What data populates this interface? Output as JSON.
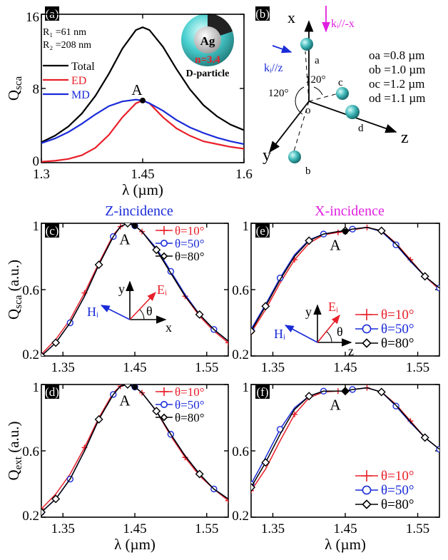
{
  "panel_a": {
    "tag": "(a)",
    "params": [
      "R₁ =61 nm",
      "R₂ =208 nm"
    ],
    "particle_label": "D-particle",
    "particle_core": "Ag",
    "particle_n": "n=3.4",
    "point_label": "A"
  },
  "panel_b": {
    "tag": "(b)",
    "axis_x": "x",
    "axis_y": "y",
    "axis_z": "z",
    "origin": "o",
    "points": [
      "a",
      "b",
      "c",
      "d"
    ],
    "angle_1": "120°",
    "angle_2": "120°",
    "k_minus_x": "kᵢ//-x",
    "k_z": "kᵢ//z",
    "distances": [
      "oa =0.8 µm",
      "ob =1.0 µm",
      "oc =1.2 µm",
      "od =1.1 µm"
    ]
  },
  "titles": {
    "z_incidence": "Z-incidence",
    "x_incidence": "X-incidence"
  },
  "inset_c": {
    "y": "y",
    "axis": "x",
    "E": "Eᵢ",
    "H": "Hᵢ",
    "theta": "θ"
  },
  "inset_e": {
    "y": "y",
    "axis": "z",
    "E": "Eᵢ",
    "H": "Hᵢ",
    "theta": "θ"
  },
  "colors": {
    "total": "#000000",
    "ed": "#e8202a",
    "md": "#1a2bd8",
    "theta10": "#e8202a",
    "theta50": "#1a2bd8",
    "theta80": "#000000",
    "title_z": "#1a2bd8",
    "title_x": "#e020e0",
    "sphere": "#40b8b8",
    "pink_arrow": "#e020e0"
  },
  "chart_data": [
    {
      "id": "a",
      "type": "line",
      "xlabel": "λ (µm)",
      "ylabel": "Q_sca",
      "xlim": [
        1.3,
        1.6
      ],
      "ylim": [
        0,
        16
      ],
      "xticks": [
        1.3,
        1.45,
        1.6
      ],
      "xticklabels": [
        "1.3",
        "1.45",
        "1.6"
      ],
      "yticks": [
        0,
        8,
        16
      ],
      "yticklabels": [
        "0",
        "8",
        "16"
      ],
      "legend_position": "top-left",
      "annotation": {
        "text": "A",
        "x": 1.45,
        "y": 6.7
      },
      "x": [
        1.3,
        1.32,
        1.34,
        1.36,
        1.38,
        1.4,
        1.42,
        1.44,
        1.45,
        1.46,
        1.48,
        1.5,
        1.52,
        1.54,
        1.56,
        1.58,
        1.6
      ],
      "series": [
        {
          "name": "Total",
          "values": [
            2.2,
            2.9,
            3.9,
            5.3,
            7.2,
            9.6,
            12.3,
            14.3,
            14.6,
            14.3,
            12.5,
            10.1,
            7.9,
            6.2,
            5.0,
            4.1,
            3.5
          ]
        },
        {
          "name": "ED",
          "values": [
            0.1,
            0.2,
            0.4,
            0.8,
            1.6,
            3.0,
            4.9,
            6.4,
            6.7,
            6.4,
            4.9,
            3.7,
            2.9,
            2.3,
            2.0,
            1.7,
            1.5
          ]
        },
        {
          "name": "MD",
          "values": [
            2.1,
            2.6,
            3.3,
            4.2,
            5.2,
            6.1,
            6.6,
            6.8,
            6.7,
            6.4,
            5.6,
            4.6,
            3.8,
            3.2,
            2.7,
            2.3,
            2.0
          ]
        }
      ]
    },
    {
      "id": "c",
      "type": "line",
      "tag": "(c)",
      "xlabel": "",
      "ylabel": "Q_sca (a.u.)",
      "xlim": [
        1.32,
        1.58
      ],
      "ylim": [
        0.2,
        1.0
      ],
      "xticks": [
        1.35,
        1.45,
        1.55
      ],
      "xticklabels": [
        "1.35",
        "1.45",
        "1.55"
      ],
      "yticks": [
        0.2,
        0.6,
        1.0
      ],
      "yticklabels": [
        "0.2",
        "0.6",
        "1"
      ],
      "legend_position": "top-right",
      "annotation": {
        "text": "A",
        "x": 1.45,
        "y": 0.985
      },
      "x": [
        1.32,
        1.34,
        1.36,
        1.38,
        1.4,
        1.42,
        1.43,
        1.44,
        1.45,
        1.46,
        1.48,
        1.5,
        1.52,
        1.54,
        1.56,
        1.58
      ],
      "series": [
        {
          "name": "θ=10°",
          "values": [
            0.21,
            0.3,
            0.42,
            0.58,
            0.76,
            0.93,
            0.98,
            1.0,
            0.985,
            0.95,
            0.84,
            0.7,
            0.56,
            0.44,
            0.35,
            0.28
          ]
        },
        {
          "name": "θ=50°",
          "values": [
            0.2,
            0.28,
            0.4,
            0.56,
            0.75,
            0.92,
            0.98,
            1.0,
            0.985,
            0.95,
            0.85,
            0.71,
            0.57,
            0.45,
            0.36,
            0.29
          ]
        },
        {
          "name": "θ=80°",
          "values": [
            0.2,
            0.28,
            0.4,
            0.56,
            0.75,
            0.92,
            0.98,
            1.0,
            0.985,
            0.95,
            0.84,
            0.7,
            0.56,
            0.45,
            0.36,
            0.29
          ]
        }
      ]
    },
    {
      "id": "e",
      "type": "line",
      "tag": "(e)",
      "xlabel": "",
      "ylabel": "",
      "xlim": [
        1.32,
        1.58
      ],
      "ylim": [
        0.2,
        1.0
      ],
      "xticks": [
        1.35,
        1.45,
        1.55
      ],
      "xticklabels": [
        "1.35",
        "1.45",
        "1.55"
      ],
      "yticks": [
        0.2,
        0.6,
        1.0
      ],
      "yticklabels": [
        "0.2",
        "0.6",
        "1"
      ],
      "legend_position": "bottom-right",
      "annotation": {
        "text": "A",
        "x": 1.45,
        "y": 0.95
      },
      "x": [
        1.32,
        1.34,
        1.36,
        1.38,
        1.4,
        1.42,
        1.44,
        1.45,
        1.46,
        1.48,
        1.5,
        1.52,
        1.54,
        1.56,
        1.58
      ],
      "series": [
        {
          "name": "θ=10°",
          "values": [
            0.34,
            0.48,
            0.64,
            0.78,
            0.88,
            0.93,
            0.945,
            0.95,
            0.96,
            0.975,
            0.955,
            0.88,
            0.78,
            0.68,
            0.6
          ]
        },
        {
          "name": "θ=50°",
          "values": [
            0.36,
            0.51,
            0.67,
            0.81,
            0.9,
            0.935,
            0.95,
            0.955,
            0.965,
            0.975,
            0.95,
            0.87,
            0.77,
            0.68,
            0.61
          ]
        },
        {
          "name": "θ=80°",
          "values": [
            0.35,
            0.5,
            0.66,
            0.8,
            0.895,
            0.935,
            0.95,
            0.955,
            0.965,
            0.975,
            0.955,
            0.875,
            0.775,
            0.68,
            0.61
          ]
        }
      ]
    },
    {
      "id": "d",
      "type": "line",
      "tag": "(d)",
      "xlabel": "λ (µm)",
      "ylabel": "Q_ext (a.u.)",
      "xlim": [
        1.32,
        1.58
      ],
      "ylim": [
        0.2,
        1.0
      ],
      "xticks": [
        1.35,
        1.45,
        1.55
      ],
      "xticklabels": [
        "1.35",
        "1.45",
        "1.55"
      ],
      "yticks": [
        0.2,
        0.6,
        1.0
      ],
      "yticklabels": [
        "0.2",
        "0.6",
        "1"
      ],
      "legend_position": "top-right",
      "annotation": {
        "text": "A",
        "x": 1.45,
        "y": 0.985
      },
      "x": [
        1.32,
        1.34,
        1.36,
        1.38,
        1.4,
        1.42,
        1.43,
        1.44,
        1.45,
        1.46,
        1.48,
        1.5,
        1.52,
        1.54,
        1.56,
        1.58
      ],
      "series": [
        {
          "name": "θ=10°",
          "values": [
            0.25,
            0.34,
            0.46,
            0.62,
            0.8,
            0.95,
            0.99,
            1.0,
            0.985,
            0.95,
            0.84,
            0.69,
            0.56,
            0.45,
            0.37,
            0.3
          ]
        },
        {
          "name": "θ=50°",
          "values": [
            0.23,
            0.31,
            0.43,
            0.6,
            0.79,
            0.94,
            0.99,
            1.0,
            0.985,
            0.95,
            0.84,
            0.7,
            0.57,
            0.46,
            0.37,
            0.31
          ]
        },
        {
          "name": "θ=80°",
          "values": [
            0.23,
            0.31,
            0.43,
            0.6,
            0.79,
            0.94,
            0.99,
            1.0,
            0.985,
            0.95,
            0.84,
            0.7,
            0.57,
            0.46,
            0.37,
            0.31
          ]
        }
      ]
    },
    {
      "id": "f",
      "type": "line",
      "tag": "(f)",
      "xlabel": "λ (µm)",
      "ylabel": "",
      "xlim": [
        1.32,
        1.58
      ],
      "ylim": [
        0.2,
        1.0
      ],
      "xticks": [
        1.35,
        1.45,
        1.55
      ],
      "xticklabels": [
        "1.35",
        "1.45",
        "1.55"
      ],
      "yticks": [
        0.2,
        0.6,
        1.0
      ],
      "yticklabels": [
        "0.2",
        "0.6",
        "1"
      ],
      "legend_position": "bottom-right",
      "annotation": {
        "text": "A",
        "x": 1.45,
        "y": 0.96
      },
      "x": [
        1.32,
        1.34,
        1.36,
        1.38,
        1.4,
        1.42,
        1.44,
        1.45,
        1.46,
        1.48,
        1.5,
        1.52,
        1.54,
        1.56,
        1.58
      ],
      "series": [
        {
          "name": "θ=10°",
          "values": [
            0.36,
            0.49,
            0.66,
            0.82,
            0.92,
            0.955,
            0.96,
            0.96,
            0.97,
            0.98,
            0.955,
            0.88,
            0.78,
            0.68,
            0.61
          ]
        },
        {
          "name": "θ=50°",
          "values": [
            0.4,
            0.56,
            0.73,
            0.86,
            0.93,
            0.96,
            0.96,
            0.96,
            0.97,
            0.98,
            0.955,
            0.87,
            0.77,
            0.68,
            0.61
          ]
        },
        {
          "name": "θ=80°",
          "values": [
            0.38,
            0.53,
            0.7,
            0.85,
            0.93,
            0.96,
            0.96,
            0.96,
            0.97,
            0.98,
            0.955,
            0.875,
            0.775,
            0.68,
            0.61
          ]
        }
      ]
    }
  ]
}
